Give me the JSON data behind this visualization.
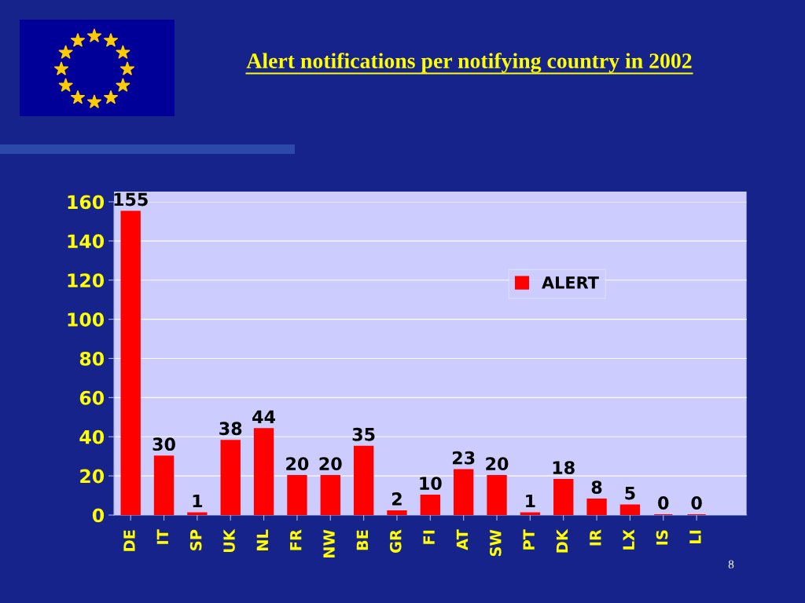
{
  "chart_data": {
    "type": "bar",
    "title": "Alert notifications per notifying country in 2002",
    "categories": [
      "DE",
      "IT",
      "SP",
      "UK",
      "NL",
      "FR",
      "NW",
      "BE",
      "GR",
      "FI",
      "AT",
      "SW",
      "PT",
      "DK",
      "IR",
      "LX",
      "IS",
      "LI"
    ],
    "series": [
      {
        "name": "ALERT",
        "color": "#ff0000",
        "values": [
          155,
          30,
          1,
          38,
          44,
          20,
          20,
          35,
          2,
          10,
          23,
          20,
          1,
          18,
          8,
          5,
          0,
          0
        ]
      }
    ],
    "ylim": [
      0,
      160
    ],
    "yticks": [
      0,
      20,
      40,
      60,
      80,
      100,
      120,
      140,
      160
    ],
    "grid": "y",
    "legend": "top right",
    "data_labels": true,
    "annotations": [
      "8"
    ]
  }
}
